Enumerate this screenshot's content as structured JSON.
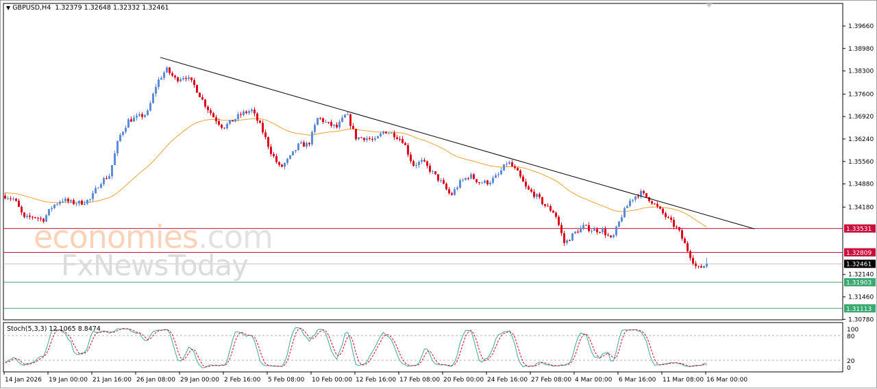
{
  "header": {
    "symbol": "GBPUSD,H4",
    "ohlc": "1.32379 1.32648 1.32332 1.32461",
    "menu_icon": "triangle-down-icon"
  },
  "watermark": {
    "line1_a": "economies",
    "line1_b": ".com",
    "line2": "FxNewsToday"
  },
  "colors": {
    "bull": "#5b8bd9",
    "bear": "#e0001b",
    "ma": "#f0a030",
    "trendline": "#000000",
    "resistance": "#c8103c",
    "support": "#3aa870",
    "current": "#000000",
    "stoch_main": "#3aa8a0",
    "stoch_signal": "#e0001b"
  },
  "chart_data": {
    "type": "candlestick",
    "symbol": "GBPUSD",
    "timeframe": "H4",
    "last_bar": {
      "open": 1.32379,
      "high": 1.32648,
      "low": 1.32332,
      "close": 1.32461
    },
    "ylim": [
      1.3045,
      1.403
    ],
    "y_ticks": [
      "1.39660",
      "1.38980",
      "1.38300",
      "1.37600",
      "1.36920",
      "1.36240",
      "1.35560",
      "1.34880",
      "1.34180",
      "1.32140",
      "1.31460",
      "1.30780"
    ],
    "x_ticks": [
      "14 Jan 2026",
      "19 Jan 00:00",
      "21 Jan 16:00",
      "26 Jan 08:00",
      "29 Jan 00:00",
      "2 Feb 16:00",
      "5 Feb 08:00",
      "10 Feb 00:00",
      "12 Feb 16:00",
      "17 Feb 08:00",
      "20 Feb 00:00",
      "24 Feb 16:00",
      "27 Feb 08:00",
      "4 Mar 00:00",
      "6 Mar 16:00",
      "11 Mar 08:00",
      "16 Mar 00:00"
    ],
    "approx_closes": [
      1.3452,
      1.3441,
      1.3383,
      1.339,
      1.3379,
      1.3421,
      1.3441,
      1.3431,
      1.3431,
      1.3441,
      1.3493,
      1.3514,
      1.3628,
      1.368,
      1.369,
      1.3701,
      1.3794,
      1.3835,
      1.3804,
      1.3815,
      1.3784,
      1.3732,
      1.369,
      1.3659,
      1.368,
      1.3701,
      1.3711,
      1.3659,
      1.3587,
      1.3535,
      1.3566,
      1.3607,
      1.3607,
      1.369,
      1.367,
      1.3659,
      1.3701,
      1.3628,
      1.3628,
      1.3618,
      1.3649,
      1.3638,
      1.3618,
      1.3545,
      1.3556,
      1.3524,
      1.3493,
      1.3452,
      1.3493,
      1.3514,
      1.3493,
      1.3493,
      1.3514,
      1.3556,
      1.3524,
      1.3473,
      1.3452,
      1.3421,
      1.34,
      1.3307,
      1.3338,
      1.3359,
      1.3348,
      1.3348,
      1.3317,
      1.339,
      1.3441,
      1.3462,
      1.3441,
      1.341,
      1.3379,
      1.3348,
      1.3286,
      1.323,
      1.3246
    ],
    "moving_average": {
      "type": "line"
    },
    "trendline": {
      "start_price": 1.3871,
      "end_price": 1.3352
    },
    "levels": [
      {
        "price": 1.33531,
        "label": "1.33531",
        "kind": "resistance"
      },
      {
        "price": 1.32809,
        "label": "1.32809",
        "kind": "resistance"
      },
      {
        "price": 1.32461,
        "label": "1.32461",
        "kind": "current"
      },
      {
        "price": 1.31903,
        "label": "1.31903",
        "kind": "support"
      },
      {
        "price": 1.31113,
        "label": "1.31113",
        "kind": "support"
      }
    ],
    "indicator": {
      "label": "Stoch(5,3,3) 12.1065 8.8474",
      "main": 12.1065,
      "signal": 8.8474,
      "ylim": [
        0,
        100
      ],
      "levels": [
        20,
        80
      ],
      "y_ticks": [
        "100",
        "80",
        "20",
        "0"
      ]
    }
  }
}
